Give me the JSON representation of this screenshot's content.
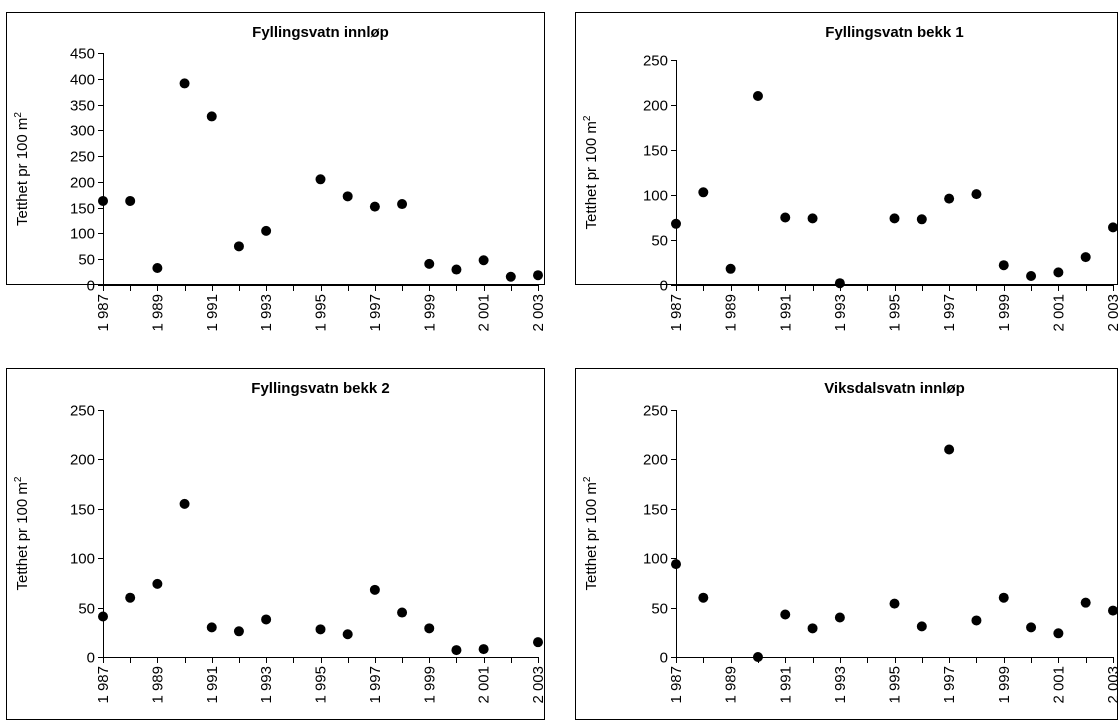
{
  "chart_data": [
    {
      "type": "scatter",
      "title": "Fyllingsvatn innløp",
      "ylabel": "Tetthet pr 100 m",
      "ylabel_sup": "2",
      "xlabel": "",
      "x_ticks": [
        "1 987",
        "1 989",
        "1 991",
        "1 993",
        "1 995",
        "1 997",
        "1 999",
        "2 001",
        "2 003"
      ],
      "y_ticks": [
        "0",
        "50",
        "100",
        "150",
        "200",
        "250",
        "300",
        "350",
        "400",
        "450"
      ],
      "xlim": [
        1987,
        2003
      ],
      "ylim": [
        0,
        450
      ],
      "x": [
        1987,
        1988,
        1989,
        1990,
        1991,
        1992,
        1993,
        1995,
        1996,
        1997,
        1998,
        1999,
        2000,
        2001,
        2002,
        2003
      ],
      "values": [
        163,
        163,
        33,
        391,
        327,
        75,
        105,
        205,
        172,
        152,
        157,
        41,
        30,
        48,
        16,
        19
      ]
    },
    {
      "type": "scatter",
      "title": "Fyllingsvatn bekk 1",
      "ylabel": "Tetthet pr 100 m",
      "ylabel_sup": "2",
      "xlabel": "",
      "x_ticks": [
        "1 987",
        "1 989",
        "1 991",
        "1 993",
        "1 995",
        "1 997",
        "1 999",
        "2 001",
        "2 003"
      ],
      "y_ticks": [
        "0",
        "50",
        "100",
        "150",
        "200",
        "250"
      ],
      "xlim": [
        1987,
        2003
      ],
      "ylim": [
        0,
        250
      ],
      "x": [
        1987,
        1988,
        1989,
        1990,
        1991,
        1992,
        1993,
        1995,
        1996,
        1997,
        1998,
        1999,
        2000,
        2001,
        2002,
        2003
      ],
      "values": [
        68,
        103,
        18,
        210,
        75,
        74,
        2,
        74,
        73,
        96,
        101,
        22,
        10,
        14,
        31,
        64
      ]
    },
    {
      "type": "scatter",
      "title": "Fyllingsvatn bekk 2",
      "ylabel": "Tetthet pr 100 m",
      "ylabel_sup": "2",
      "xlabel": "",
      "x_ticks": [
        "1 987",
        "1 989",
        "1 991",
        "1 993",
        "1 995",
        "1 997",
        "1 999",
        "2 001",
        "2 003"
      ],
      "y_ticks": [
        "0",
        "50",
        "100",
        "150",
        "200",
        "250"
      ],
      "xlim": [
        1987,
        2003
      ],
      "ylim": [
        0,
        250
      ],
      "x": [
        1987,
        1988,
        1989,
        1990,
        1991,
        1992,
        1993,
        1995,
        1996,
        1997,
        1998,
        1999,
        2000,
        2001,
        2003
      ],
      "values": [
        41,
        60,
        74,
        155,
        30,
        26,
        38,
        28,
        23,
        68,
        45,
        29,
        7,
        8,
        15
      ]
    },
    {
      "type": "scatter",
      "title": "Viksdalsvatn innløp",
      "ylabel": "Tetthet pr 100 m",
      "ylabel_sup": "2",
      "xlabel": "",
      "x_ticks": [
        "1 987",
        "1 989",
        "1 991",
        "1 993",
        "1 995",
        "1 997",
        "1 999",
        "2 001",
        "2 003"
      ],
      "y_ticks": [
        "0",
        "50",
        "100",
        "150",
        "200",
        "250"
      ],
      "xlim": [
        1987,
        2003
      ],
      "ylim": [
        0,
        250
      ],
      "x": [
        1987,
        1988,
        1990,
        1991,
        1992,
        1993,
        1995,
        1996,
        1997,
        1998,
        1999,
        2000,
        2001,
        2002,
        2003
      ],
      "values": [
        94,
        60,
        0,
        43,
        29,
        40,
        54,
        31,
        210,
        37,
        60,
        30,
        24,
        55,
        47
      ]
    }
  ]
}
